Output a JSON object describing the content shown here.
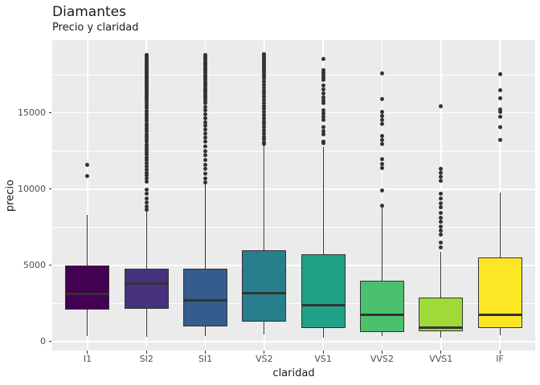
{
  "chart_data": {
    "type": "boxplot",
    "title": "Diamantes",
    "subtitle": "Precio y claridad",
    "xlabel": "claridad",
    "ylabel": "precio",
    "categories": [
      "I1",
      "SI2",
      "SI1",
      "VS2",
      "VS1",
      "VVS2",
      "VVS1",
      "IF"
    ],
    "y_axis": {
      "major_ticks": [
        0,
        5000,
        10000,
        15000
      ],
      "major_tick_labels": [
        "0",
        "5000",
        "10000",
        "15000"
      ],
      "minor_ticks": [
        2500,
        7500,
        12500,
        17500
      ],
      "range": [
        -590,
        19770
      ]
    },
    "legend_position": "none",
    "grid": "major+minor",
    "style": {
      "panel_bg": "#ebebeb",
      "grid_color": "#ffffff",
      "box_border_color": "#333333",
      "outlier_color": "#333333",
      "tick_label_color": "#4d4d4d",
      "text_color": "#1a1a1a"
    },
    "series": [
      {
        "label": "I1",
        "fill": "#440154",
        "whisker_low": 370,
        "q1": 2100,
        "median": 3100,
        "q3": 5000,
        "whisker_high": 8300,
        "outliers": [
          10850,
          11600
        ]
      },
      {
        "label": "SI2",
        "fill": "#46327E",
        "whisker_low": 320,
        "q1": 2150,
        "median": 3800,
        "q3": 4790,
        "whisker_high": 8500,
        "outliers": [
          18820,
          18720,
          18620,
          18520,
          18420,
          18320,
          18220,
          18120,
          18020,
          17920,
          17820,
          17720,
          17620,
          17520,
          17420,
          17320,
          17220,
          17120,
          17020,
          16920,
          16820,
          16720,
          16620,
          16520,
          16420,
          16320,
          16220,
          16120,
          16020,
          15920,
          15820,
          15650,
          15480,
          15310,
          15140,
          14970,
          14800,
          14630,
          14460,
          14290,
          14120,
          13950,
          13780,
          13610,
          13440,
          13270,
          13100,
          12930,
          12760,
          12590,
          12420,
          12250,
          12080,
          11880,
          11680,
          11480,
          11280,
          11080,
          10880,
          10680,
          10480,
          9950,
          9700,
          9400,
          9100,
          8850,
          8650
        ]
      },
      {
        "label": "SI1",
        "fill": "#365C8D",
        "whisker_low": 350,
        "q1": 1000,
        "median": 2700,
        "q3": 4780,
        "whisker_high": 10300,
        "outliers": [
          18820,
          18700,
          18580,
          18460,
          18340,
          18220,
          18100,
          17980,
          17860,
          17740,
          17620,
          17500,
          17380,
          17260,
          17140,
          17020,
          16900,
          16780,
          16660,
          16540,
          16420,
          16300,
          16180,
          16060,
          15940,
          15820,
          15650,
          15400,
          15150,
          14900,
          14650,
          14400,
          14150,
          13900,
          13650,
          13400,
          13100,
          12800,
          12500,
          12200,
          11900,
          11600,
          11300,
          11000,
          10700,
          10420
        ]
      },
      {
        "label": "VS2",
        "fill": "#277F8E",
        "whisker_low": 440,
        "q1": 1310,
        "median": 3180,
        "q3": 5980,
        "whisker_high": 12850,
        "outliers": [
          18870,
          18750,
          18630,
          18510,
          18390,
          18270,
          18150,
          18030,
          17910,
          17790,
          17670,
          17550,
          17430,
          17250,
          17050,
          16850,
          16650,
          16450,
          16250,
          16050,
          15850,
          15650,
          15450,
          15250,
          15050,
          14850,
          14650,
          14450,
          14250,
          14050,
          13850,
          13650,
          13450,
          13250,
          13050,
          12950
        ]
      },
      {
        "label": "VS1",
        "fill": "#1FA187",
        "whisker_low": 260,
        "q1": 860,
        "median": 2400,
        "q3": 5740,
        "whisker_high": 12750,
        "outliers": [
          18520,
          17780,
          17620,
          17460,
          17300,
          17140,
          16800,
          16520,
          16260,
          16020,
          15820,
          15620,
          15150,
          14950,
          14750,
          14550,
          14080,
          13820,
          13580,
          13120,
          12990
        ]
      },
      {
        "label": "VVS2",
        "fill": "#4AC16D",
        "whisker_low": 370,
        "q1": 620,
        "median": 1750,
        "q3": 4000,
        "whisker_high": 8800,
        "outliers": [
          17600,
          15920,
          15060,
          14820,
          14530,
          14250,
          13460,
          13210,
          12970,
          11970,
          11660,
          11360,
          9900,
          8930
        ]
      },
      {
        "label": "VVS1",
        "fill": "#A0DA39",
        "whisker_low": 260,
        "q1": 670,
        "median": 930,
        "q3": 2880,
        "whisker_high": 5900,
        "outliers": [
          15450,
          11320,
          11060,
          10780,
          10520,
          9700,
          9360,
          9060,
          8820,
          8420,
          8120,
          7860,
          7560,
          7250,
          7000,
          6500,
          6150
        ]
      },
      {
        "label": "IF",
        "fill": "#FDE725",
        "whisker_low": 400,
        "q1": 890,
        "median": 1740,
        "q3": 5490,
        "whisker_high": 9800,
        "outliers": [
          17560,
          16480,
          15980,
          15230,
          15050,
          14750,
          14080,
          13240
        ]
      }
    ]
  }
}
